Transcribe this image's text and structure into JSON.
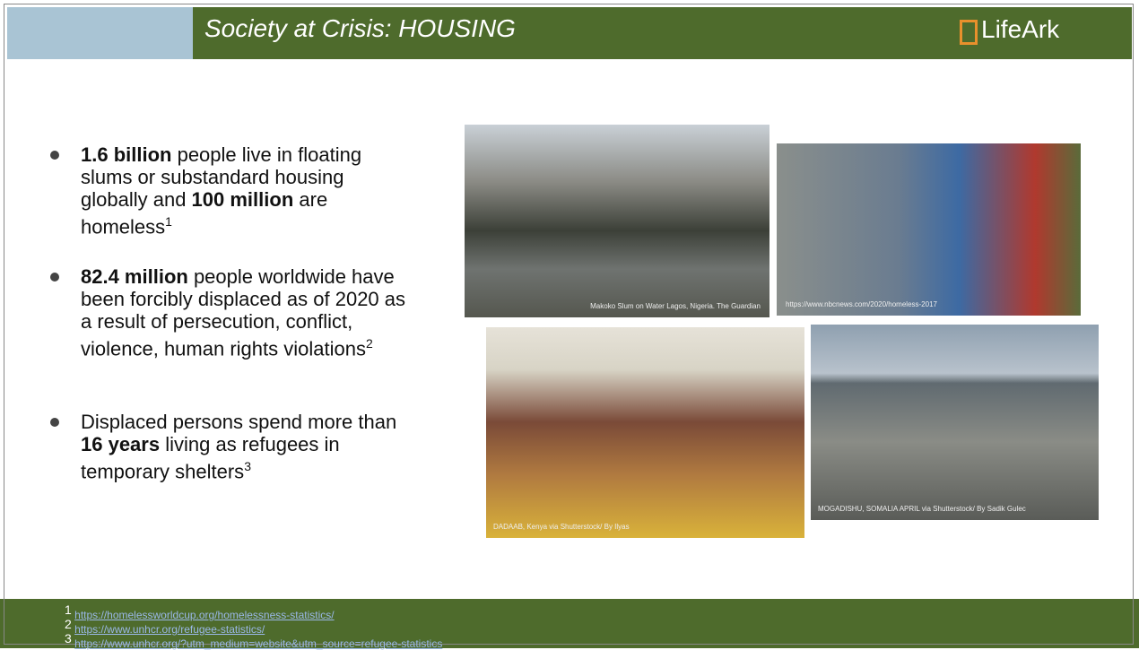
{
  "header": {
    "title": "Society at Crisis: HOUSING",
    "logo": "LifeArk"
  },
  "bullets": [
    {
      "runs": [
        {
          "text": "1.6 billion",
          "bold": true
        },
        {
          "text": " people live in floating slums or substandard housing globally and ",
          "bold": false
        },
        {
          "text": "100 million",
          "bold": true
        },
        {
          "text": " are homeless",
          "bold": false
        }
      ],
      "note": "1"
    },
    {
      "runs": [
        {
          "text": "82.4 million",
          "bold": true
        },
        {
          "text": " people worldwide have been forcibly displaced as of 2020 as a result of persecution, conflict, violence, human rights violations",
          "bold": false
        }
      ],
      "note": "2"
    },
    {
      "runs": [
        {
          "text": "Displaced persons spend more than ",
          "bold": false
        },
        {
          "text": "16 years",
          "bold": true
        },
        {
          "text": " living as refugees in temporary shelters",
          "bold": false
        }
      ],
      "note": "3"
    }
  ],
  "photos": [
    {
      "caption": "Makoko Slum on Water Lagos, Nigeria. The Guardian"
    },
    {
      "caption": "https://www.nbcnews.com/2020/homeless-2017"
    },
    {
      "caption": "DADAAB, Kenya via Shutterstock/ By Ilyas"
    },
    {
      "caption": "MOGADISHU, SOMALIA APRIL via Shutterstock/ By Sadik Gulec"
    }
  ],
  "footnotes": [
    {
      "num": "1",
      "text": "https://homelessworldcup.org/homelessness-statistics/"
    },
    {
      "num": "2",
      "text": "https://www.unhcr.org/refugee-statistics/"
    },
    {
      "num": "3",
      "text": "https://www.unhcr.org/?utm_medium=website&utm_source=refugee-statistics"
    }
  ]
}
